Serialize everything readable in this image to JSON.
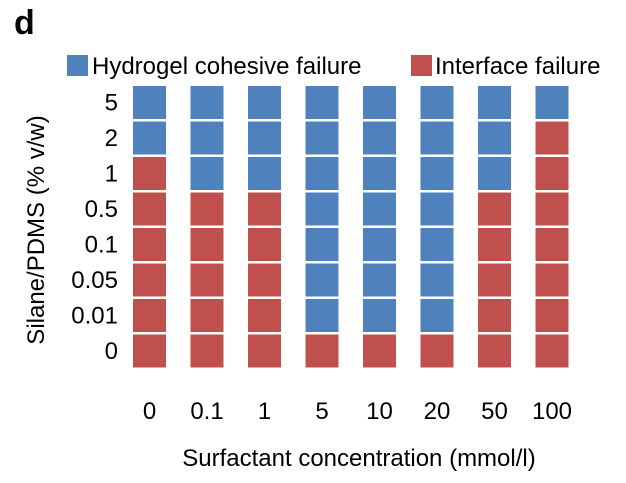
{
  "chart_data": {
    "type": "heatmap",
    "panel_label": "d",
    "xlabel": "Surfactant concentration (mmol/l)",
    "ylabel": "Silane/PDMS (% v/w)",
    "x_categories": [
      "0",
      "0.1",
      "1",
      "5",
      "10",
      "20",
      "50",
      "100"
    ],
    "y_categories": [
      "5",
      "2",
      "1",
      "0.5",
      "0.1",
      "0.05",
      "0.01",
      "0"
    ],
    "legend": [
      {
        "key": "H",
        "label": "Hydrogel cohesive failure",
        "color": "#4f81bd"
      },
      {
        "key": "I",
        "label": "Interface failure",
        "color": "#c0504d"
      }
    ],
    "legend_placement": "top",
    "grid": false,
    "cells": [
      [
        "H",
        "H",
        "H",
        "H",
        "H",
        "H",
        "H",
        "H"
      ],
      [
        "H",
        "H",
        "H",
        "H",
        "H",
        "H",
        "H",
        "I"
      ],
      [
        "I",
        "H",
        "H",
        "H",
        "H",
        "H",
        "H",
        "I"
      ],
      [
        "I",
        "I",
        "I",
        "H",
        "H",
        "H",
        "I",
        "I"
      ],
      [
        "I",
        "I",
        "I",
        "H",
        "H",
        "H",
        "I",
        "I"
      ],
      [
        "I",
        "I",
        "I",
        "H",
        "H",
        "H",
        "I",
        "I"
      ],
      [
        "I",
        "I",
        "I",
        "H",
        "H",
        "H",
        "I",
        "I"
      ],
      [
        "I",
        "I",
        "I",
        "I",
        "I",
        "I",
        "I",
        "I"
      ]
    ]
  }
}
